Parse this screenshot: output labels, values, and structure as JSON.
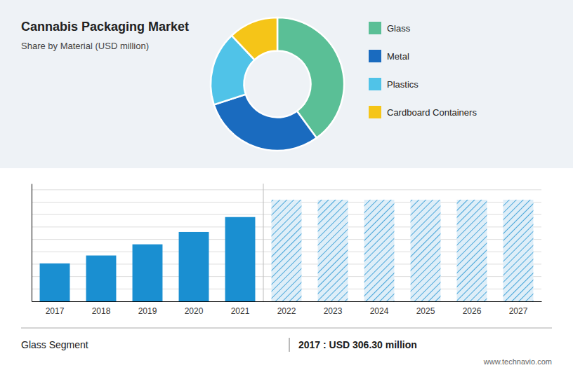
{
  "chart_data": [
    {
      "type": "pie",
      "title": "Cannabis Packaging Market",
      "subtitle": "Share by Material (USD million)",
      "categories": [
        "Glass",
        "Metal",
        "Plastics",
        "Cardboard Containers"
      ],
      "values": [
        40,
        30,
        18,
        12
      ],
      "colors": [
        "#5abf96",
        "#1a6bbf",
        "#50c3e8",
        "#f5c518"
      ],
      "legend": "right"
    },
    {
      "type": "bar",
      "categories": [
        "2017",
        "2018",
        "2019",
        "2020",
        "2021",
        "2022",
        "2023",
        "2024",
        "2025",
        "2026",
        "2027"
      ],
      "values": [
        306,
        370,
        460,
        560,
        680,
        820,
        820,
        820,
        820,
        820,
        820
      ],
      "colors": [
        "#1a8fd1",
        "#1a8fd1",
        "#1a8fd1",
        "#1a8fd1",
        "#1a8fd1",
        "#deeef8",
        "#deeef8",
        "#deeef8",
        "#deeef8",
        "#deeef8",
        "#deeef8"
      ],
      "ylim": [
        0,
        950
      ],
      "yticks": [
        100,
        200,
        300,
        400,
        500,
        600,
        700,
        800,
        900
      ],
      "grid": true,
      "tick_labels": "x",
      "annotations": [
        "Glass Segment",
        "2017 : USD 306.30 million",
        "www.technavio.com"
      ]
    }
  ]
}
